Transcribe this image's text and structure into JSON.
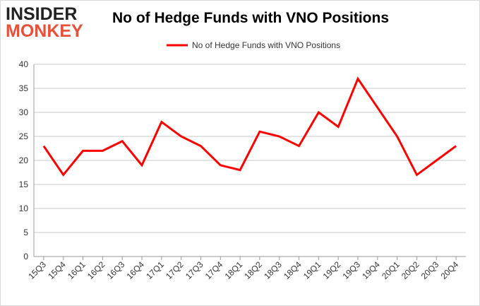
{
  "logo": {
    "line1": "INSIDER",
    "line2": "MONKEY"
  },
  "title": "No of Hedge Funds with VNO Positions",
  "chart_data": {
    "type": "line",
    "title": "No of Hedge Funds with VNO Positions",
    "xlabel": "",
    "ylabel": "",
    "categories": [
      "15Q3",
      "15Q4",
      "16Q1",
      "16Q2",
      "16Q3",
      "16Q4",
      "17Q1",
      "17Q2",
      "17Q3",
      "17Q4",
      "18Q1",
      "18Q2",
      "18Q3",
      "18Q4",
      "19Q1",
      "19Q2",
      "19Q3",
      "19Q4",
      "20Q1",
      "20Q2",
      "20Q3",
      "20Q4"
    ],
    "series": [
      {
        "name": "No of Hedge Funds with VNO Positions",
        "values": [
          23,
          17,
          22,
          22,
          24,
          19,
          28,
          25,
          23,
          19,
          18,
          26,
          25,
          23,
          30,
          27,
          37,
          31,
          25,
          17,
          20,
          23
        ],
        "color": "#ff0000"
      }
    ],
    "ylim": [
      0,
      40
    ],
    "yticks": [
      0,
      5,
      10,
      15,
      20,
      25,
      30,
      35,
      40
    ],
    "grid": true,
    "legend_position": "top-center"
  }
}
